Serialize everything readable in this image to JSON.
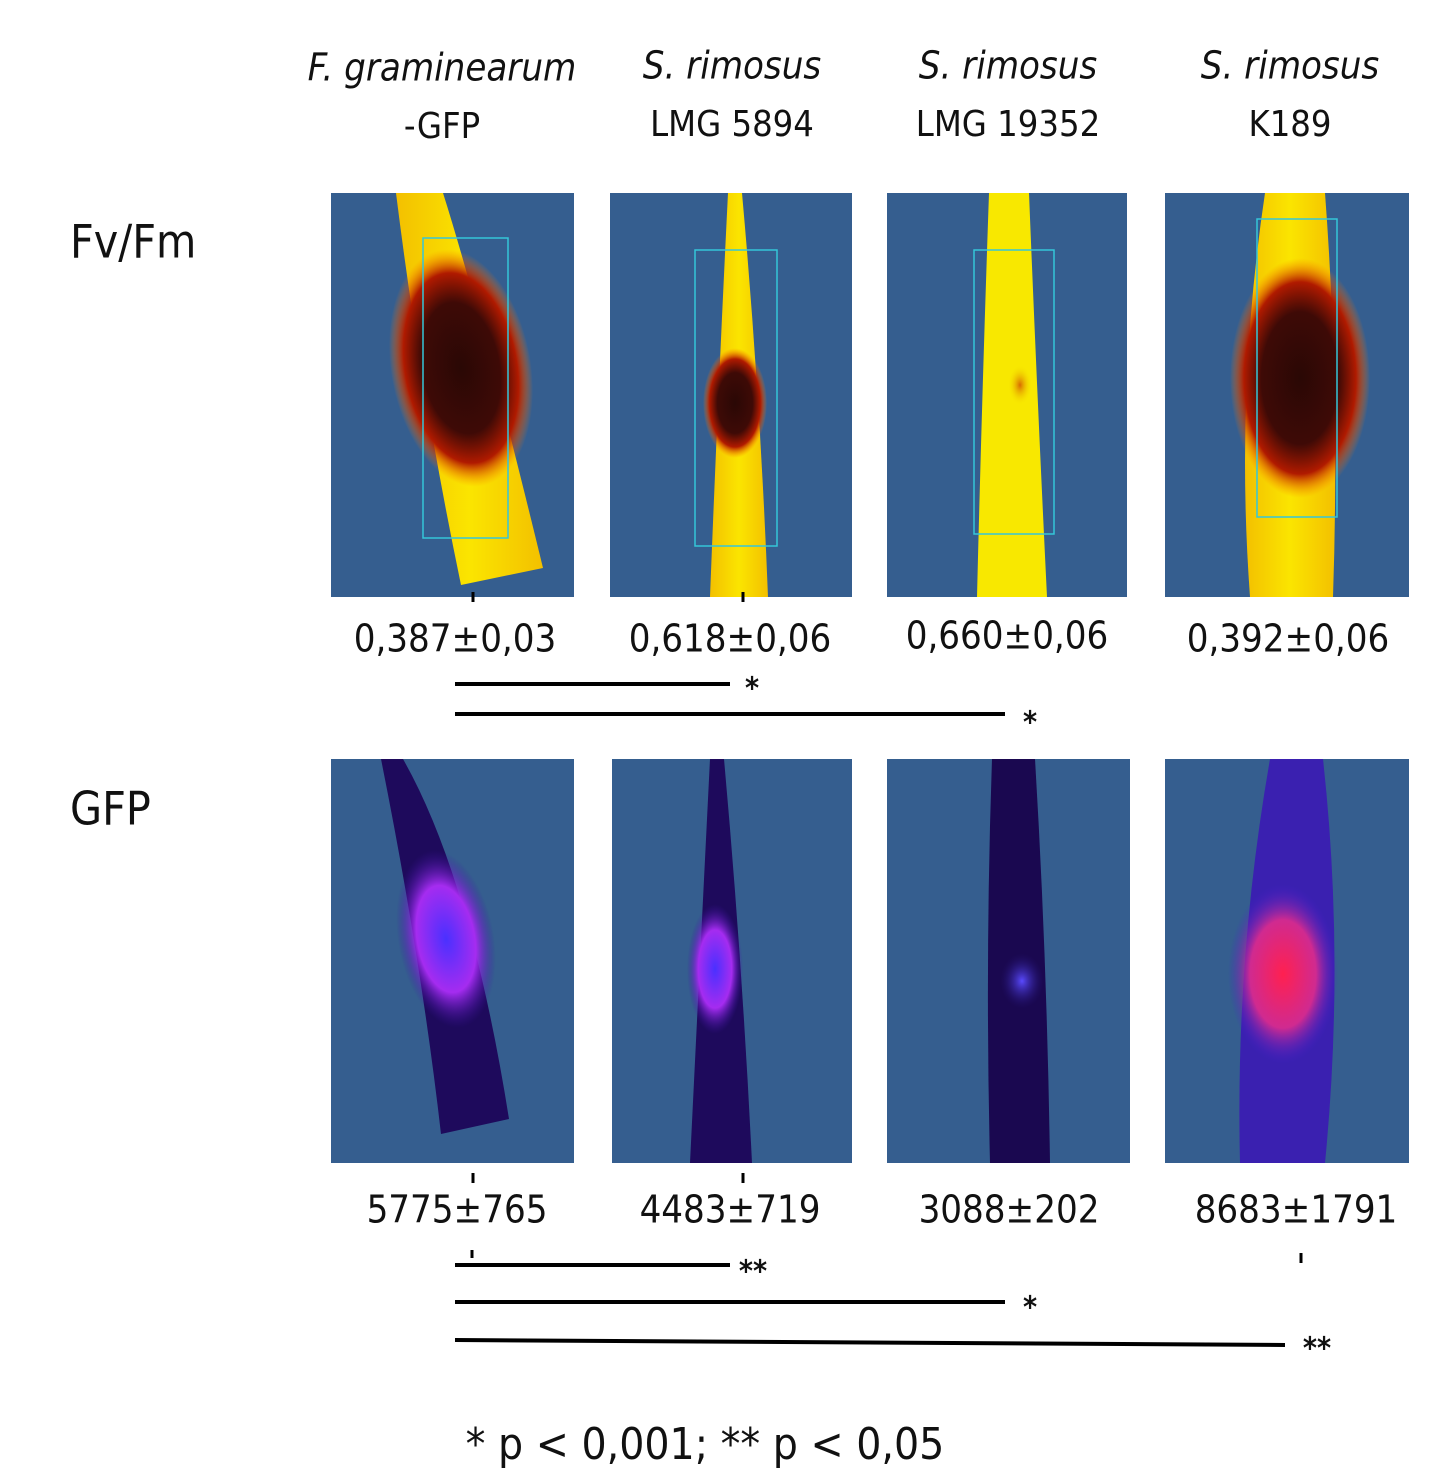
{
  "columns": [
    {
      "species": "F. graminearum",
      "strain": "-GFP"
    },
    {
      "species": "S. rimosus",
      "strain": "LMG 5894"
    },
    {
      "species": "S. rimosus",
      "strain": "LMG 19352"
    },
    {
      "species": "S. rimosus",
      "strain": "K189"
    }
  ],
  "rows": [
    {
      "label": "Fv/Fm",
      "values": [
        "0,387±0,03",
        "0,618±0,06",
        "0,660±0,06",
        "0,392±0,06"
      ],
      "comparisons": [
        "*",
        "*"
      ]
    },
    {
      "label": "GFP",
      "values": [
        "5775±765",
        "4483±719",
        "3088±202",
        "8683±1791"
      ],
      "comparisons": [
        "**",
        "*",
        "**"
      ]
    }
  ],
  "footnote": "* p < 0,001; ** p < 0,05"
}
